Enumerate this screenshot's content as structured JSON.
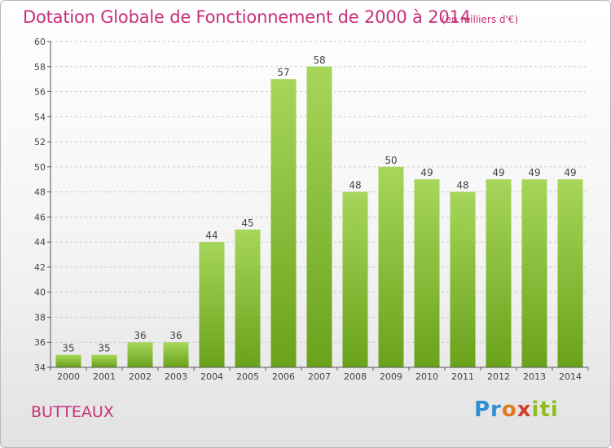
{
  "header": {
    "title": "Dotation Globale de Fonctionnement de 2000 à 2014",
    "unit": "(en milliers d'€)"
  },
  "footer": {
    "commune": "BUTTEAUX",
    "logo_text": "Proxiti"
  },
  "chart_data": {
    "type": "bar",
    "title": "Dotation Globale de Fonctionnement de 2000 à 2014",
    "subtitle": "(en milliers d'€)",
    "xlabel": "",
    "ylabel": "",
    "categories": [
      "2000",
      "2001",
      "2002",
      "2003",
      "2004",
      "2005",
      "2006",
      "2007",
      "2008",
      "2009",
      "2010",
      "2011",
      "2012",
      "2013",
      "2014"
    ],
    "values": [
      35,
      35,
      36,
      36,
      44,
      45,
      57,
      58,
      48,
      50,
      49,
      48,
      49,
      49,
      49
    ],
    "ylim": [
      34,
      60
    ],
    "yticks": [
      34,
      36,
      38,
      40,
      42,
      44,
      46,
      48,
      50,
      52,
      54,
      56,
      58,
      60
    ],
    "grid": "horizontal dashed",
    "legend": "none",
    "colors": {
      "bar_light": "#a6d65a",
      "bar_dark": "#6aa21b",
      "grid": "#c9c9c9",
      "axis": "#555555",
      "title": "#c8307a"
    }
  }
}
